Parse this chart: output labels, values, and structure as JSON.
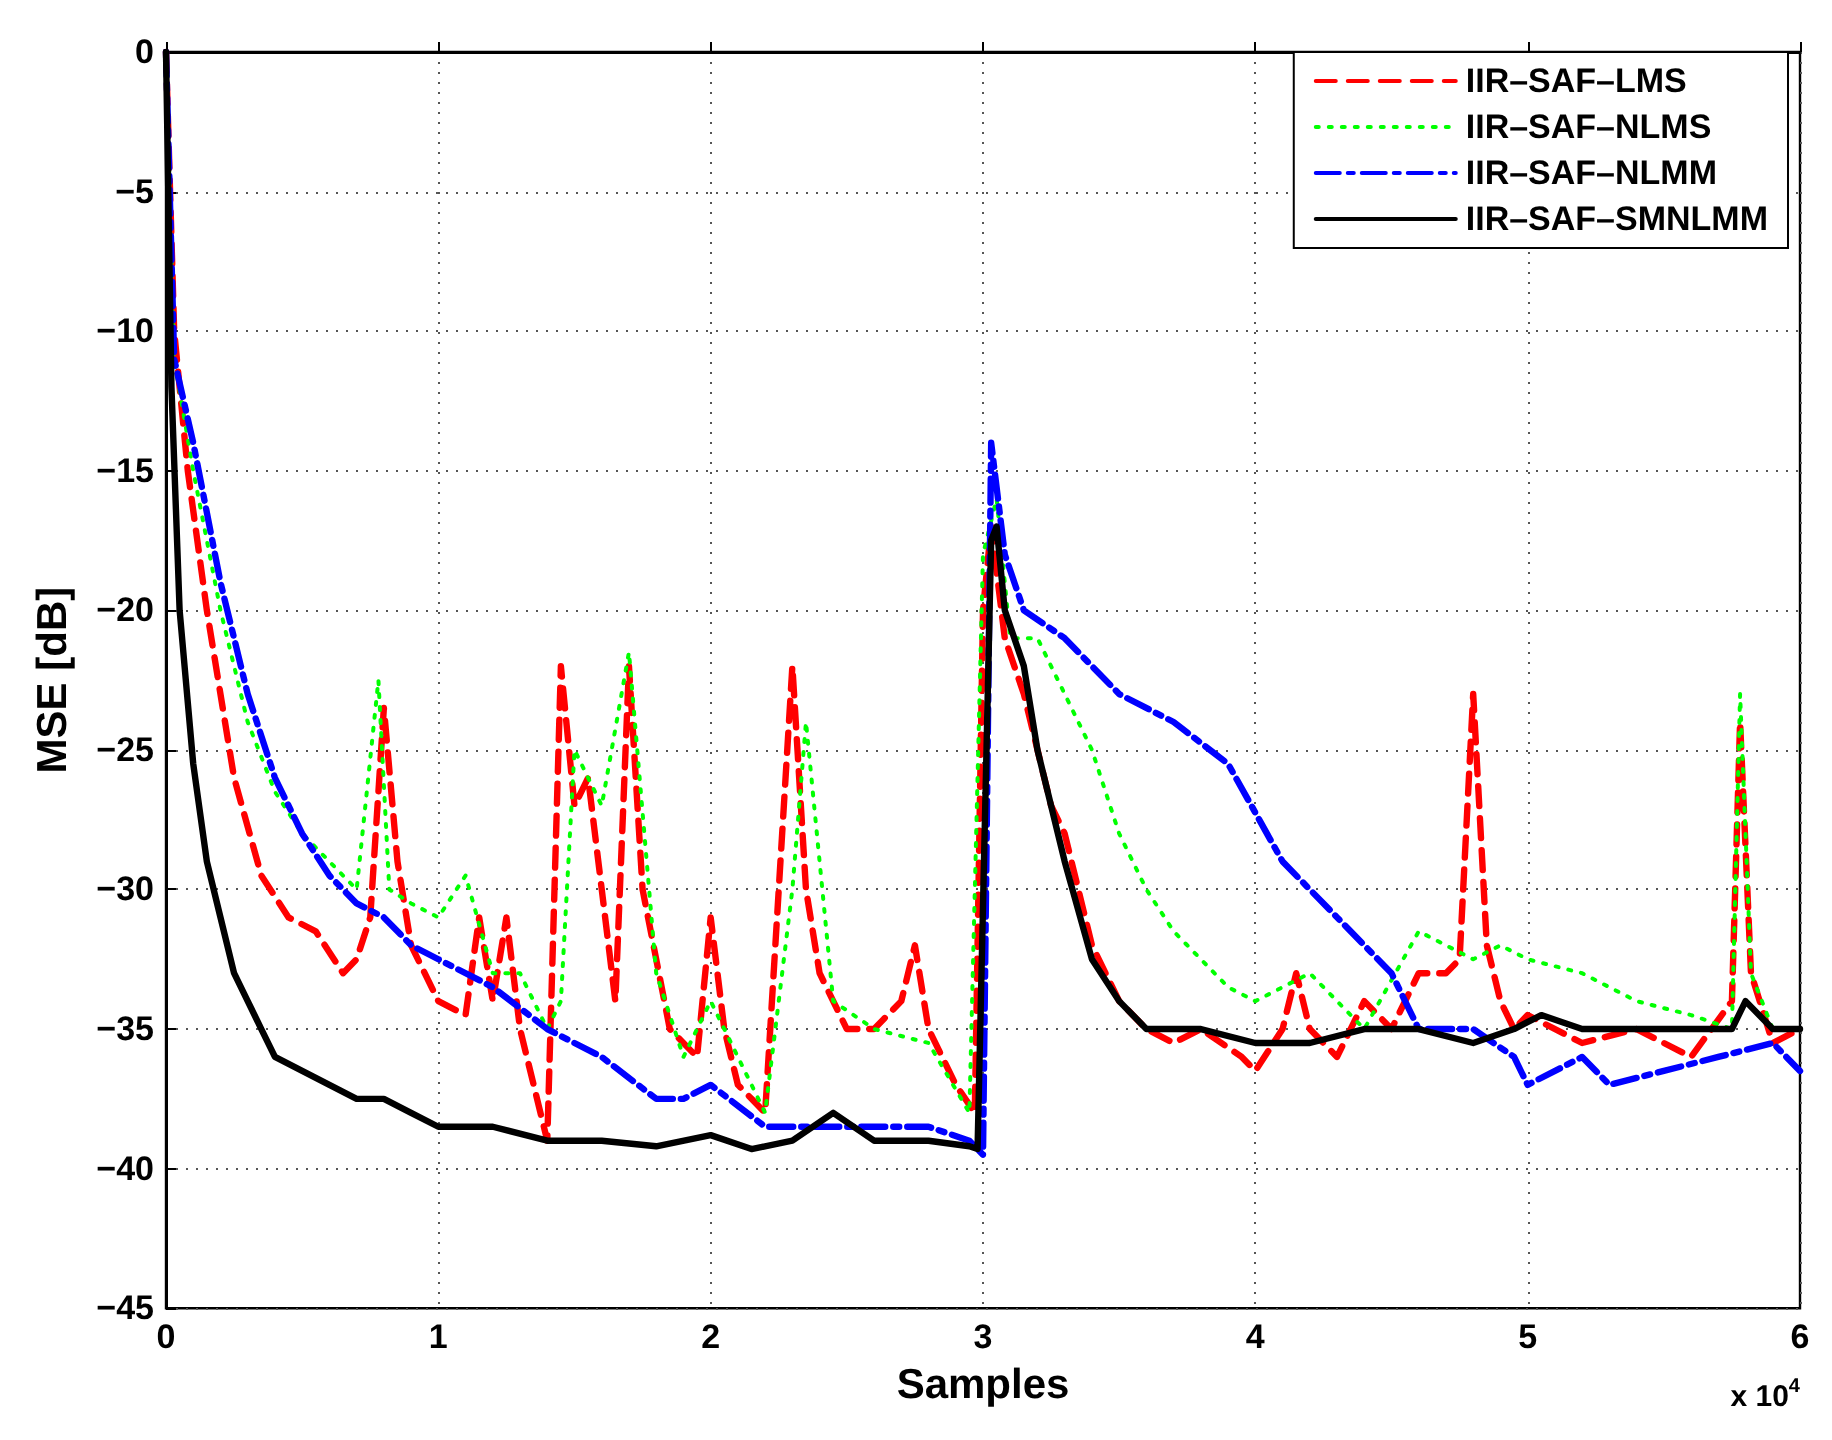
{
  "chart_data": {
    "type": "line",
    "xlabel": "Samples",
    "ylabel": "MSE [dB]",
    "xlim": [
      0,
      6
    ],
    "xticks": [
      0,
      1,
      2,
      3,
      4,
      5,
      6
    ],
    "ylim": [
      -45,
      0
    ],
    "yticks": [
      -45,
      -40,
      -35,
      -30,
      -25,
      -20,
      -15,
      -10,
      -5,
      0
    ],
    "grid": true,
    "legend": "top right",
    "marker": "none",
    "annotations": [
      "x 10$^{4}$"
    ],
    "series": [
      {
        "name": "IIR–SAF–LMS",
        "color": "#ff0000",
        "line_style": "dashed",
        "x": [
          0,
          0.03,
          0.08,
          0.15,
          0.25,
          0.35,
          0.45,
          0.55,
          0.65,
          0.7,
          0.75,
          0.8,
          0.85,
          0.9,
          1.0,
          1.1,
          1.15,
          1.2,
          1.25,
          1.3,
          1.35,
          1.4,
          1.45,
          1.5,
          1.55,
          1.6,
          1.65,
          1.7,
          1.75,
          1.85,
          1.95,
          2.0,
          2.05,
          2.1,
          2.15,
          2.2,
          2.3,
          2.35,
          2.4,
          2.5,
          2.6,
          2.7,
          2.75,
          2.8,
          2.9,
          2.97,
          3.0,
          3.03,
          3.08,
          3.15,
          3.25,
          3.3,
          3.4,
          3.5,
          3.6,
          3.7,
          3.8,
          3.95,
          4.0,
          4.1,
          4.15,
          4.2,
          4.3,
          4.4,
          4.5,
          4.6,
          4.7,
          4.75,
          4.8,
          4.85,
          4.9,
          4.95,
          5.0,
          5.2,
          5.4,
          5.5,
          5.6,
          5.75,
          5.78,
          5.82,
          5.9,
          6.0
        ],
        "values": [
          0,
          -10,
          -15,
          -20,
          -26,
          -29.5,
          -31,
          -31.5,
          -33,
          -32.5,
          -31,
          -23.5,
          -29,
          -32,
          -34,
          -34.5,
          -31,
          -34,
          -31,
          -35,
          -37,
          -39,
          -22,
          -27,
          -26,
          -30,
          -34,
          -22,
          -30,
          -35,
          -36,
          -31,
          -35,
          -37,
          -37.5,
          -38,
          -22,
          -30,
          -33,
          -35,
          -35,
          -34,
          -32,
          -35,
          -37,
          -38,
          -20,
          -17,
          -21,
          -23,
          -27,
          -28,
          -32,
          -34,
          -35,
          -35.5,
          -35,
          -36,
          -36.5,
          -35,
          -33,
          -35,
          -36,
          -34,
          -35,
          -33,
          -33,
          -32.5,
          -23,
          -32,
          -34,
          -35,
          -34.5,
          -35.5,
          -35,
          -35.5,
          -36,
          -34,
          -24,
          -33,
          -35.5,
          -35
        ]
      },
      {
        "name": "IIR–SAF–NLMS",
        "color": "#00ff00",
        "line_style": "dotted",
        "x": [
          0,
          0.03,
          0.1,
          0.2,
          0.3,
          0.4,
          0.5,
          0.6,
          0.7,
          0.78,
          0.82,
          0.9,
          1.0,
          1.1,
          1.2,
          1.3,
          1.4,
          1.45,
          1.5,
          1.6,
          1.7,
          1.8,
          1.9,
          2.0,
          2.1,
          2.2,
          2.3,
          2.35,
          2.45,
          2.6,
          2.8,
          2.95,
          3.0,
          3.05,
          3.1,
          3.2,
          3.3,
          3.4,
          3.5,
          3.6,
          3.7,
          3.8,
          3.9,
          4.0,
          4.2,
          4.4,
          4.6,
          4.8,
          4.9,
          5.0,
          5.2,
          5.4,
          5.6,
          5.75,
          5.78,
          5.82,
          5.9,
          6.0
        ],
        "values": [
          0,
          -11,
          -15,
          -20,
          -24,
          -26.5,
          -28,
          -29,
          -30,
          -22.5,
          -30,
          -30.5,
          -31,
          -29.5,
          -33,
          -33,
          -35,
          -34,
          -25,
          -27,
          -21.5,
          -33,
          -36,
          -34,
          -36,
          -38,
          -30,
          -24,
          -34,
          -35,
          -35.5,
          -38,
          -18,
          -16,
          -21,
          -21,
          -23,
          -25,
          -28,
          -30,
          -31.5,
          -32.5,
          -33.5,
          -34,
          -33,
          -35,
          -31.5,
          -32.5,
          -32,
          -32.5,
          -33,
          -34,
          -34.5,
          -35,
          -23,
          -33,
          -35,
          -35
        ]
      },
      {
        "name": "IIR–SAF–NLMM",
        "color": "#0000ff",
        "line_style": "dashdot",
        "x": [
          0,
          0.03,
          0.1,
          0.2,
          0.3,
          0.4,
          0.5,
          0.6,
          0.7,
          0.8,
          0.9,
          1.0,
          1.2,
          1.4,
          1.6,
          1.8,
          1.9,
          2.0,
          2.2,
          2.4,
          2.6,
          2.8,
          2.95,
          3.0,
          3.03,
          3.08,
          3.15,
          3.3,
          3.5,
          3.7,
          3.9,
          4.1,
          4.3,
          4.5,
          4.6,
          4.8,
          4.95,
          5.0,
          5.2,
          5.3,
          5.5,
          5.7,
          5.9,
          6.0
        ],
        "values": [
          0,
          -11,
          -14,
          -19,
          -23,
          -26,
          -28,
          -29.5,
          -30.5,
          -31,
          -32,
          -32.5,
          -33.5,
          -35,
          -36,
          -37.5,
          -37.5,
          -37,
          -38.5,
          -38.5,
          -38.5,
          -38.5,
          -39,
          -39.5,
          -14,
          -18,
          -20,
          -21,
          -23,
          -24,
          -25.5,
          -29,
          -31,
          -33,
          -35,
          -35,
          -36,
          -37,
          -36,
          -37,
          -36.5,
          -36,
          -35.5,
          -36.5
        ]
      },
      {
        "name": "IIR–SAF–SMNLMM",
        "color": "#000000",
        "line_style": "solid",
        "x": [
          0,
          0.02,
          0.05,
          0.1,
          0.15,
          0.2,
          0.25,
          0.3,
          0.35,
          0.4,
          0.5,
          0.6,
          0.7,
          0.8,
          0.9,
          1.0,
          1.2,
          1.4,
          1.6,
          1.8,
          2.0,
          2.15,
          2.3,
          2.45,
          2.6,
          2.8,
          2.95,
          2.98,
          3.03,
          3.05,
          3.08,
          3.15,
          3.2,
          3.3,
          3.4,
          3.5,
          3.6,
          3.8,
          4.0,
          4.2,
          4.4,
          4.6,
          4.8,
          4.95,
          5.05,
          5.2,
          5.4,
          5.6,
          5.75,
          5.8,
          5.9,
          6.0
        ],
        "values": [
          0,
          -12,
          -20,
          -25.5,
          -29,
          -31,
          -33,
          -34,
          -35,
          -36,
          -36.5,
          -37,
          -37.5,
          -37.5,
          -38,
          -38.5,
          -38.5,
          -39,
          -39,
          -39.2,
          -38.8,
          -39.3,
          -39,
          -38,
          -39,
          -39,
          -39.2,
          -39.3,
          -17.5,
          -17,
          -20,
          -22,
          -25,
          -29,
          -32.5,
          -34,
          -35,
          -35,
          -35.5,
          -35.5,
          -35,
          -35,
          -35.5,
          -35,
          -34.5,
          -35,
          -35,
          -35,
          -35,
          -34,
          -35,
          -35
        ]
      }
    ]
  }
}
